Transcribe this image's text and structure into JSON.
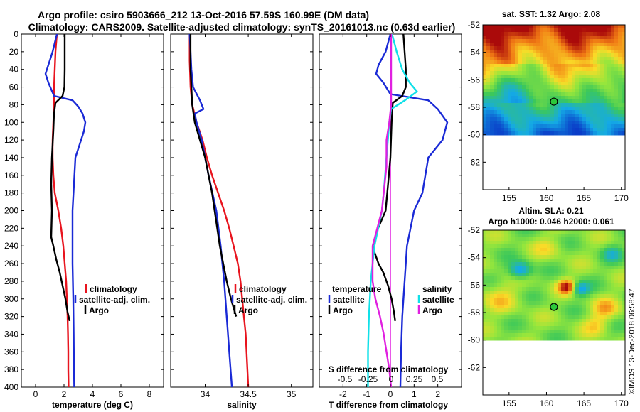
{
  "title_line1": "Argo profile: csiro 5903666_212 13-Oct-2016 57.59S 160.99E (DM data)",
  "title_line2": "Climatology: CARS2009. Satellite-adjusted climatology: synTS_20161013.nc (0.63d earlier)",
  "credit": "©IMOS 13-Dec-2018 06:58:47",
  "colors": {
    "climatology": "#e8141e",
    "satellite": "#1a2ad6",
    "argo": "#000000",
    "sal_diff": "#e020e0",
    "sal_sat": "#10e0e8"
  },
  "chart_data": [
    {
      "type": "line",
      "id": "temperature",
      "xlabel": "temperature (deg C)",
      "ylabel": "",
      "xlim": [
        -1,
        9
      ],
      "ylim": [
        400,
        0
      ],
      "xticks": [
        "0",
        "2",
        "4",
        "6",
        "8"
      ],
      "xtick_values": [
        0,
        2,
        4,
        6,
        8
      ],
      "yticks": [
        "0",
        "20",
        "40",
        "60",
        "80",
        "100",
        "120",
        "140",
        "160",
        "180",
        "200",
        "220",
        "240",
        "260",
        "280",
        "300",
        "320",
        "340",
        "360",
        "380",
        "400"
      ],
      "legend": [
        "climatology",
        "satellite-adj. clim.",
        "Argo"
      ],
      "series": [
        {
          "name": "climatology",
          "points": [
            [
              1.5,
              0
            ],
            [
              1.4,
              20
            ],
            [
              1.35,
              40
            ],
            [
              1.3,
              60
            ],
            [
              1.3,
              80
            ],
            [
              1.25,
              100
            ],
            [
              1.2,
              120
            ],
            [
              1.2,
              140
            ],
            [
              1.25,
              160
            ],
            [
              1.35,
              180
            ],
            [
              1.6,
              200
            ],
            [
              1.8,
              220
            ],
            [
              1.95,
              240
            ],
            [
              2.05,
              260
            ],
            [
              2.15,
              280
            ],
            [
              2.2,
              300
            ],
            [
              2.25,
              320
            ],
            [
              2.28,
              340
            ],
            [
              2.3,
              360
            ],
            [
              2.3,
              380
            ],
            [
              2.32,
              400
            ]
          ]
        },
        {
          "name": "satellite-adj. clim.",
          "points": [
            [
              1.5,
              0
            ],
            [
              1.2,
              20
            ],
            [
              1.0,
              30
            ],
            [
              0.7,
              45
            ],
            [
              0.9,
              55
            ],
            [
              1.3,
              70
            ],
            [
              2.6,
              75
            ],
            [
              3.0,
              82
            ],
            [
              3.3,
              90
            ],
            [
              3.5,
              100
            ],
            [
              3.4,
              110
            ],
            [
              2.8,
              140
            ],
            [
              2.6,
              200
            ],
            [
              2.6,
              260
            ],
            [
              2.65,
              300
            ],
            [
              2.68,
              340
            ],
            [
              2.7,
              380
            ],
            [
              2.72,
              400
            ]
          ]
        },
        {
          "name": "Argo",
          "points": [
            [
              2.05,
              0
            ],
            [
              2.05,
              20
            ],
            [
              2.05,
              40
            ],
            [
              2.03,
              60
            ],
            [
              1.9,
              70
            ],
            [
              1.4,
              78
            ],
            [
              1.3,
              90
            ],
            [
              1.25,
              110
            ],
            [
              1.15,
              140
            ],
            [
              1.1,
              170
            ],
            [
              1.15,
              200
            ],
            [
              1.1,
              230
            ],
            [
              1.25,
              240
            ],
            [
              1.45,
              255
            ],
            [
              1.7,
              270
            ],
            [
              1.9,
              285
            ],
            [
              2.1,
              300
            ],
            [
              2.25,
              315
            ],
            [
              2.4,
              325
            ]
          ]
        }
      ]
    },
    {
      "type": "line",
      "id": "salinity",
      "xlabel": "salinity",
      "ylabel": "",
      "xlim": [
        33.6,
        35.25
      ],
      "ylim": [
        400,
        0
      ],
      "xticks": [
        "34",
        "34.5",
        "35"
      ],
      "xtick_values": [
        34,
        34.5,
        35
      ],
      "legend": [
        "climatology",
        "satellite-adj. clim.",
        "Argo"
      ],
      "series": [
        {
          "name": "climatology",
          "points": [
            [
              33.82,
              0
            ],
            [
              33.82,
              30
            ],
            [
              33.83,
              60
            ],
            [
              33.85,
              80
            ],
            [
              33.9,
              100
            ],
            [
              33.97,
              120
            ],
            [
              34.02,
              140
            ],
            [
              34.08,
              160
            ],
            [
              34.15,
              180
            ],
            [
              34.22,
              200
            ],
            [
              34.28,
              220
            ],
            [
              34.33,
              240
            ],
            [
              34.38,
              260
            ],
            [
              34.41,
              280
            ],
            [
              34.43,
              300
            ],
            [
              34.45,
              320
            ],
            [
              34.47,
              340
            ],
            [
              34.48,
              360
            ],
            [
              34.49,
              380
            ],
            [
              34.5,
              400
            ]
          ]
        },
        {
          "name": "satellite-adj. clim.",
          "points": [
            [
              33.82,
              0
            ],
            [
              33.83,
              20
            ],
            [
              33.84,
              40
            ],
            [
              33.86,
              60
            ],
            [
              33.94,
              75
            ],
            [
              33.98,
              85
            ],
            [
              33.88,
              90
            ],
            [
              33.9,
              100
            ],
            [
              33.96,
              120
            ],
            [
              34.04,
              160
            ],
            [
              34.13,
              200
            ],
            [
              34.18,
              240
            ],
            [
              34.22,
              280
            ],
            [
              34.25,
              320
            ],
            [
              34.28,
              360
            ],
            [
              34.31,
              400
            ]
          ]
        },
        {
          "name": "Argo",
          "points": [
            [
              33.83,
              0
            ],
            [
              33.83,
              20
            ],
            [
              33.83,
              40
            ],
            [
              33.84,
              60
            ],
            [
              33.85,
              80
            ],
            [
              33.88,
              100
            ],
            [
              33.94,
              120
            ],
            [
              34.0,
              140
            ],
            [
              34.04,
              160
            ],
            [
              34.08,
              180
            ],
            [
              34.11,
              200
            ],
            [
              34.14,
              220
            ],
            [
              34.17,
              240
            ],
            [
              34.21,
              260
            ],
            [
              34.25,
              280
            ],
            [
              34.3,
              300
            ],
            [
              34.36,
              320
            ]
          ]
        }
      ]
    },
    {
      "type": "line",
      "id": "difference",
      "xlabel": "T difference from climatology",
      "xlabel_top": "S difference from climatology",
      "ylabel": "",
      "xlim": [
        -3,
        3
      ],
      "ylim": [
        400,
        0
      ],
      "xticks": [
        "-2",
        "-1",
        "0",
        "1",
        "2"
      ],
      "xtick_values": [
        -2,
        -1,
        0,
        1,
        2
      ],
      "sticks": [
        "-0.5",
        "-0.25",
        "0",
        "0.25",
        "0.5"
      ],
      "stick_values": [
        -0.5,
        -0.25,
        0,
        0.25,
        0.5
      ],
      "legend_left_title": "temperature",
      "legend_left": [
        "satellite",
        "Argo"
      ],
      "legend_right_title": "salinity",
      "legend_right": [
        "satellite",
        "Argo"
      ],
      "series": [
        {
          "name": "T satellite",
          "units": "degC",
          "points": [
            [
              0,
              0
            ],
            [
              -0.2,
              20
            ],
            [
              -0.5,
              35
            ],
            [
              -0.6,
              45
            ],
            [
              -0.3,
              55
            ],
            [
              0,
              68
            ],
            [
              1.6,
              75
            ],
            [
              2.0,
              85
            ],
            [
              2.4,
              100
            ],
            [
              2.2,
              120
            ],
            [
              1.6,
              140
            ],
            [
              1.35,
              180
            ],
            [
              1.0,
              200
            ],
            [
              0.7,
              240
            ],
            [
              0.6,
              280
            ],
            [
              0.5,
              320
            ],
            [
              0.45,
              360
            ],
            [
              0.42,
              400
            ]
          ]
        },
        {
          "name": "T Argo",
          "units": "degC",
          "points": [
            [
              0.55,
              0
            ],
            [
              0.6,
              20
            ],
            [
              0.65,
              40
            ],
            [
              0.65,
              60
            ],
            [
              0.5,
              70
            ],
            [
              0.1,
              78
            ],
            [
              0.05,
              100
            ],
            [
              0.0,
              140
            ],
            [
              -0.1,
              170
            ],
            [
              -0.2,
              200
            ],
            [
              -0.6,
              225
            ],
            [
              -0.7,
              245
            ],
            [
              -0.5,
              260
            ],
            [
              -0.3,
              270
            ],
            [
              -0.1,
              285
            ],
            [
              0.05,
              300
            ],
            [
              0.15,
              315
            ],
            [
              0.2,
              325
            ]
          ]
        },
        {
          "name": "S satellite",
          "units": "psu",
          "points": [
            [
              0.01,
              0
            ],
            [
              0.06,
              20
            ],
            [
              0.12,
              40
            ],
            [
              0.2,
              55
            ],
            [
              0.28,
              65
            ],
            [
              0.15,
              75
            ],
            [
              0,
              85
            ],
            [
              -0.02,
              100
            ],
            [
              -0.05,
              140
            ],
            [
              -0.08,
              180
            ],
            [
              -0.1,
              200
            ],
            [
              -0.18,
              240
            ],
            [
              -0.22,
              280
            ],
            [
              -0.24,
              320
            ],
            [
              -0.25,
              360
            ],
            [
              -0.25,
              400
            ]
          ]
        },
        {
          "name": "S Argo",
          "units": "psu",
          "points": [
            [
              0,
              0
            ],
            [
              0,
              40
            ],
            [
              0,
              80
            ],
            [
              -0.02,
              100
            ],
            [
              -0.05,
              120
            ],
            [
              -0.05,
              150
            ],
            [
              -0.08,
              180
            ],
            [
              -0.1,
              200
            ],
            [
              -0.15,
              220
            ],
            [
              -0.2,
              240
            ],
            [
              -0.2,
              280
            ],
            [
              -0.17,
              300
            ],
            [
              -0.12,
              320
            ],
            [
              -0.08,
              340
            ],
            [
              -0.05,
              360
            ],
            [
              -0.02,
              380
            ],
            [
              0,
              400
            ]
          ]
        }
      ]
    }
  ],
  "maps": [
    {
      "id": "sst",
      "title_lines": [
        "sat. SST: 1.32 Argo: 2.08"
      ],
      "xticks": [
        "155",
        "160",
        "165",
        "170"
      ],
      "xtick_values": [
        155,
        160,
        165,
        170
      ],
      "yticks": [
        "-52",
        "-54",
        "-56",
        "-58",
        "-60",
        "-62"
      ],
      "ytick_values": [
        -52,
        -54,
        -56,
        -58,
        -60,
        -62
      ],
      "lon_range": [
        151.5,
        170.5
      ],
      "lat_range": [
        -52,
        -64
      ],
      "data_lat_bottom": -60,
      "float_lon": 160.99,
      "float_lat": -57.59
    },
    {
      "id": "sla",
      "title_lines": [
        "Altim. SLA: 0.21",
        "Argo h1000: 0.046 h2000: 0.061"
      ],
      "xticks": [
        "155",
        "160",
        "165",
        "170"
      ],
      "xtick_values": [
        155,
        160,
        165,
        170
      ],
      "yticks": [
        "-52",
        "-54",
        "-56",
        "-58",
        "-60",
        "-62"
      ],
      "ytick_values": [
        -52,
        -54,
        -56,
        -58,
        -60,
        -62
      ],
      "lon_range": [
        151.5,
        170.5
      ],
      "lat_range": [
        -52,
        -64
      ],
      "data_lat_bottom": -60,
      "float_lon": 160.99,
      "float_lat": -57.59
    }
  ]
}
